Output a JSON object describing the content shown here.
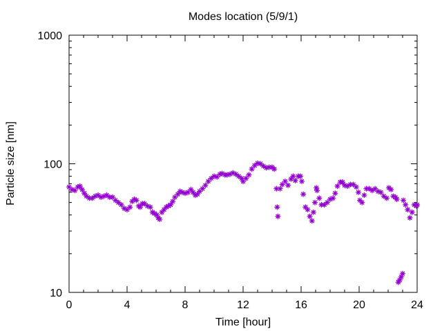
{
  "chart_data": {
    "type": "scatter",
    "title": "Modes location (5/9/1)",
    "xlabel": "Time [hour]",
    "ylabel": "Particle size [nm]",
    "xlim": [
      0,
      24
    ],
    "ylim": [
      10,
      1000
    ],
    "yscale": "log",
    "x_ticks": [
      0,
      4,
      8,
      12,
      16,
      20,
      24
    ],
    "x_tick_labels": [
      "0",
      "4",
      "8",
      "12",
      "16",
      "20",
      "24"
    ],
    "y_ticks": [
      10,
      100,
      1000
    ],
    "y_tick_labels": [
      "10",
      "100",
      "1000"
    ],
    "grid": false,
    "legend": "none",
    "marker": "asterisk",
    "series": [
      {
        "color": "#9400d3",
        "points": [
          [
            0.0,
            66
          ],
          [
            0.2,
            63
          ],
          [
            0.4,
            62
          ],
          [
            0.6,
            66
          ],
          [
            0.75,
            67
          ],
          [
            0.9,
            63
          ],
          [
            1.05,
            59
          ],
          [
            1.2,
            56
          ],
          [
            1.4,
            54
          ],
          [
            1.6,
            54
          ],
          [
            1.8,
            56
          ],
          [
            2.0,
            57
          ],
          [
            2.2,
            55
          ],
          [
            2.4,
            56
          ],
          [
            2.6,
            57
          ],
          [
            2.8,
            55
          ],
          [
            3.0,
            55
          ],
          [
            3.2,
            52
          ],
          [
            3.4,
            50
          ],
          [
            3.6,
            48
          ],
          [
            3.8,
            45
          ],
          [
            4.0,
            44
          ],
          [
            4.2,
            46
          ],
          [
            4.35,
            51
          ],
          [
            4.5,
            53
          ],
          [
            4.65,
            52
          ],
          [
            4.8,
            47
          ],
          [
            4.9,
            46
          ],
          [
            5.05,
            49
          ],
          [
            5.2,
            49
          ],
          [
            5.4,
            47
          ],
          [
            5.6,
            46
          ],
          [
            5.75,
            42
          ],
          [
            5.9,
            41
          ],
          [
            6.05,
            40
          ],
          [
            6.15,
            38
          ],
          [
            6.25,
            37
          ],
          [
            6.4,
            42
          ],
          [
            6.55,
            44
          ],
          [
            6.7,
            46
          ],
          [
            6.85,
            47
          ],
          [
            7.0,
            48
          ],
          [
            7.15,
            51
          ],
          [
            7.3,
            55
          ],
          [
            7.5,
            58
          ],
          [
            7.65,
            61
          ],
          [
            7.8,
            60
          ],
          [
            8.0,
            59
          ],
          [
            8.2,
            60
          ],
          [
            8.4,
            63
          ],
          [
            8.55,
            60
          ],
          [
            8.7,
            57
          ],
          [
            8.85,
            58
          ],
          [
            9.0,
            61
          ],
          [
            9.2,
            64
          ],
          [
            9.4,
            68
          ],
          [
            9.6,
            73
          ],
          [
            9.8,
            77
          ],
          [
            10.0,
            80
          ],
          [
            10.2,
            79
          ],
          [
            10.4,
            83
          ],
          [
            10.55,
            84
          ],
          [
            10.75,
            82
          ],
          [
            10.9,
            82
          ],
          [
            11.1,
            83
          ],
          [
            11.3,
            85
          ],
          [
            11.5,
            83
          ],
          [
            11.7,
            80
          ],
          [
            11.9,
            77
          ],
          [
            12.0,
            73
          ],
          [
            12.2,
            77
          ],
          [
            12.4,
            82
          ],
          [
            12.6,
            91
          ],
          [
            12.8,
            97
          ],
          [
            13.0,
            101
          ],
          [
            13.2,
            100
          ],
          [
            13.4,
            96
          ],
          [
            13.6,
            93
          ],
          [
            13.8,
            94
          ],
          [
            14.0,
            94
          ],
          [
            14.15,
            91
          ],
          [
            14.3,
            64
          ],
          [
            14.35,
            46
          ],
          [
            14.4,
            39
          ],
          [
            14.55,
            64
          ],
          [
            14.7,
            69
          ],
          [
            14.9,
            73
          ],
          [
            15.1,
            68
          ],
          [
            15.3,
            76
          ],
          [
            15.45,
            80
          ],
          [
            15.6,
            74
          ],
          [
            15.8,
            80
          ],
          [
            15.95,
            80
          ],
          [
            16.05,
            73
          ],
          [
            16.15,
            58
          ],
          [
            16.3,
            46
          ],
          [
            16.45,
            44
          ],
          [
            16.6,
            39
          ],
          [
            16.75,
            36
          ],
          [
            16.85,
            42
          ],
          [
            16.95,
            50
          ],
          [
            17.05,
            65
          ],
          [
            17.1,
            62
          ],
          [
            17.25,
            54
          ],
          [
            17.4,
            48
          ],
          [
            17.6,
            48
          ],
          [
            17.8,
            50
          ],
          [
            18.0,
            53
          ],
          [
            18.2,
            54
          ],
          [
            18.35,
            59
          ],
          [
            18.5,
            67
          ],
          [
            18.7,
            72
          ],
          [
            18.85,
            72
          ],
          [
            19.0,
            68
          ],
          [
            19.2,
            67
          ],
          [
            19.4,
            69
          ],
          [
            19.6,
            69
          ],
          [
            19.8,
            66
          ],
          [
            19.95,
            60
          ],
          [
            20.05,
            52
          ],
          [
            20.2,
            50
          ],
          [
            20.35,
            57
          ],
          [
            20.5,
            64
          ],
          [
            20.7,
            64
          ],
          [
            20.9,
            62
          ],
          [
            21.1,
            64
          ],
          [
            21.3,
            61
          ],
          [
            21.5,
            60
          ],
          [
            21.7,
            56
          ],
          [
            21.9,
            54
          ],
          [
            22.05,
            65
          ],
          [
            22.2,
            63
          ],
          [
            22.35,
            56
          ],
          [
            22.5,
            55
          ],
          [
            22.6,
            53
          ],
          [
            22.7,
            12
          ],
          [
            22.8,
            12.5
          ],
          [
            22.9,
            13.2
          ],
          [
            23.0,
            14
          ],
          [
            23.05,
            52
          ],
          [
            23.2,
            48
          ],
          [
            23.35,
            44
          ],
          [
            23.5,
            38
          ],
          [
            23.65,
            42
          ],
          [
            23.8,
            48
          ],
          [
            23.95,
            47
          ],
          [
            24.0,
            48
          ]
        ]
      }
    ]
  }
}
